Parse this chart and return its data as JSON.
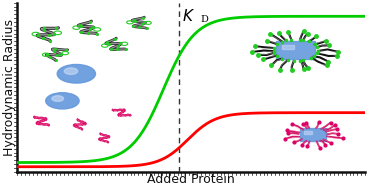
{
  "title": "",
  "xlabel": "Added Protein",
  "ylabel": "Hydrodynamic Radius",
  "background_color": "#ffffff",
  "xlim": [
    0,
    10
  ],
  "ylim": [
    0,
    10
  ],
  "kd_x": 4.65,
  "green_curve": {
    "start_y": 0.55,
    "end_y": 9.2,
    "midpoint": 4.2,
    "steepness": 2.2,
    "color": "#00cc00"
  },
  "red_curve": {
    "start_y": 0.3,
    "end_y": 3.5,
    "midpoint": 4.9,
    "steepness": 2.5,
    "color": "#ff0000"
  },
  "axis_color": "#111111",
  "tick_color": "#111111",
  "xlabel_fontsize": 9,
  "ylabel_fontsize": 9,
  "kd_fontsize": 11,
  "sphere_color": "#6699dd",
  "sphere_highlight": "#aabbee"
}
